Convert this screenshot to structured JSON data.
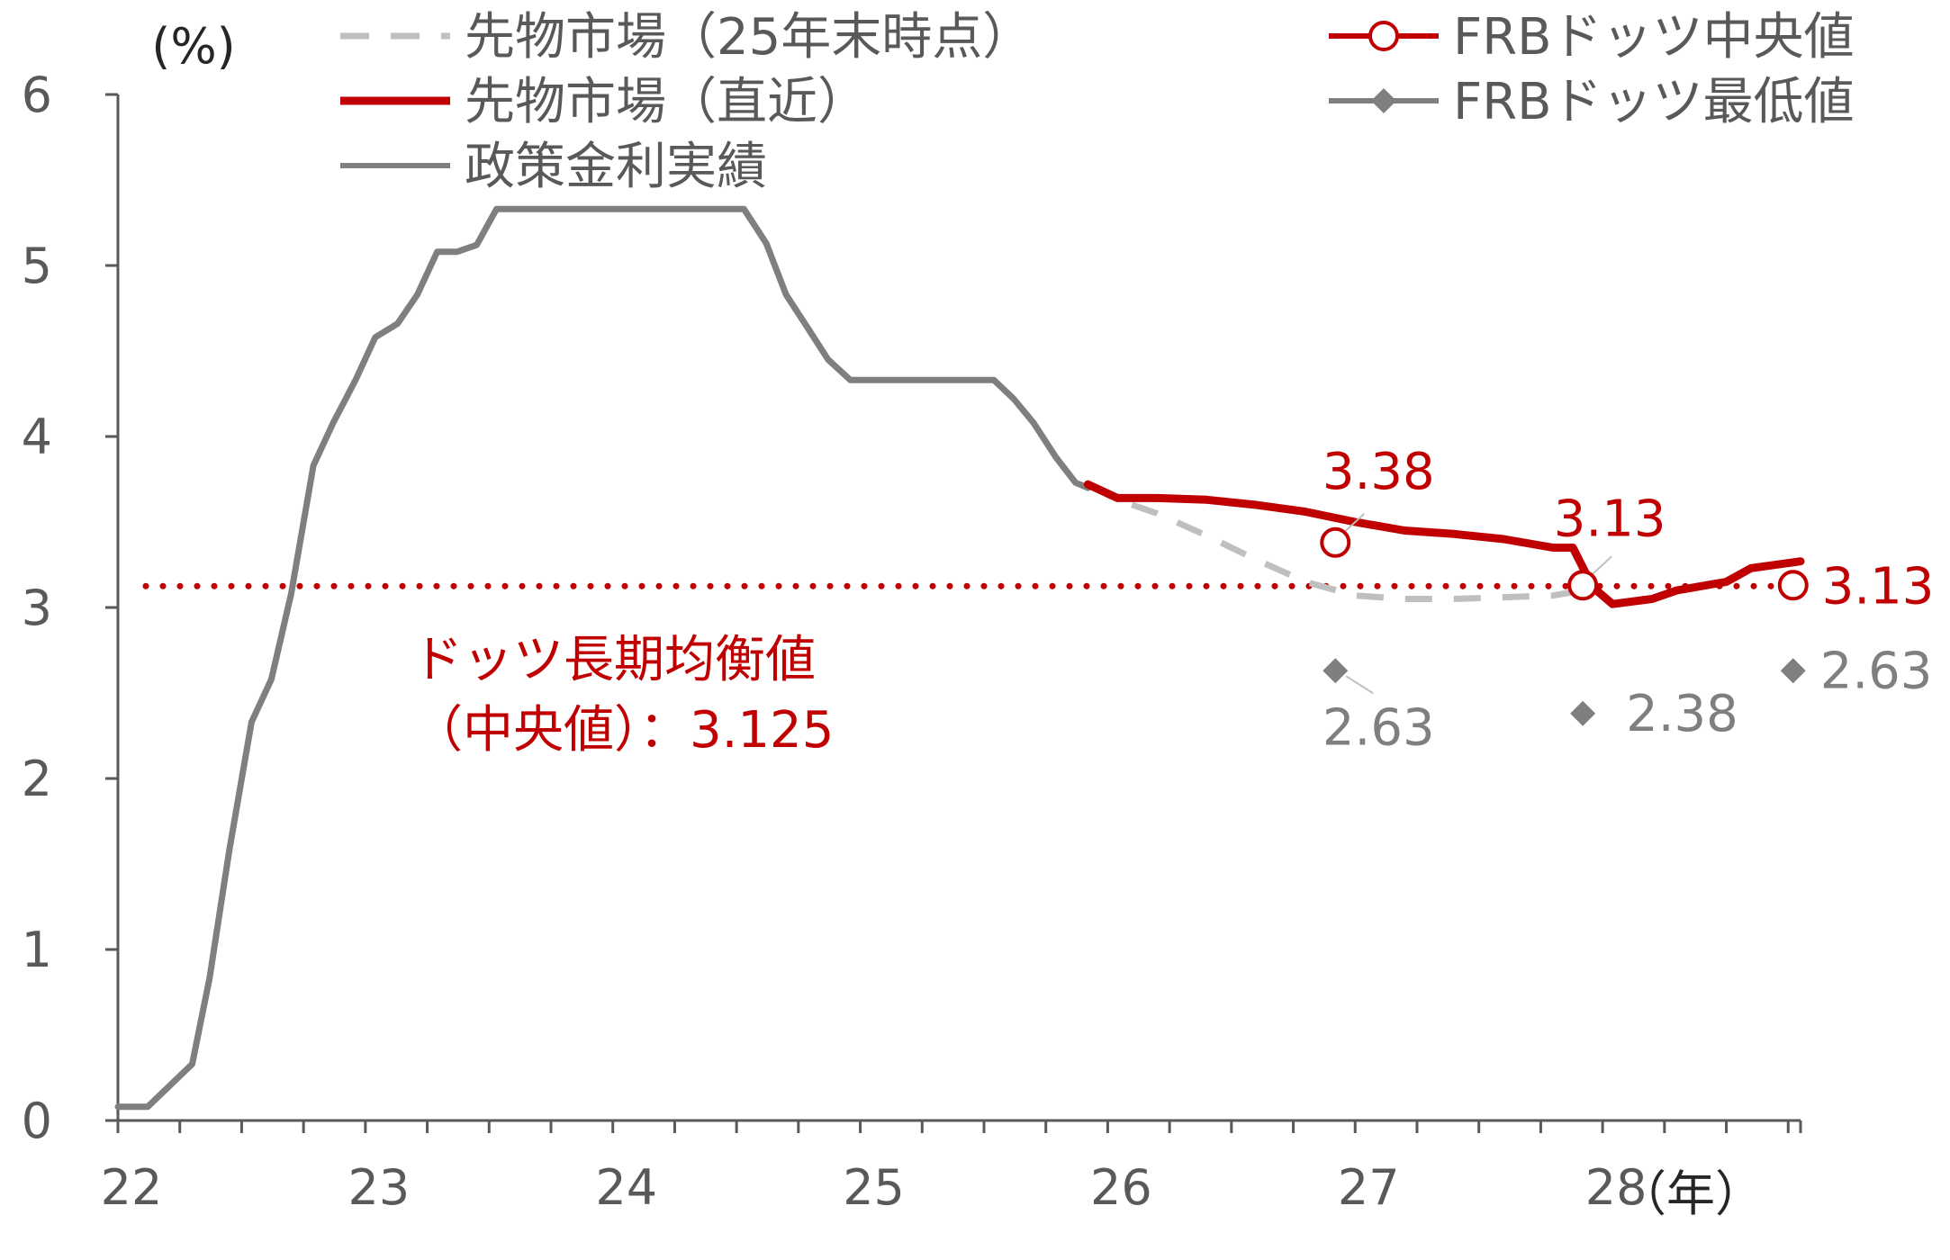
{
  "chart_data": {
    "type": "line",
    "y_unit": "(%)",
    "x_unit": "（年）",
    "ylim": [
      0,
      6
    ],
    "y_ticks": [
      "0",
      "1",
      "2",
      "3",
      "4",
      "5",
      "6"
    ],
    "xlim": [
      22,
      28.8
    ],
    "x_ticks": [
      "22",
      "23",
      "24",
      "25",
      "26",
      "27",
      "28"
    ],
    "grid": false,
    "legend_position": "top",
    "legend": [
      {
        "label": "先物市場（25年末時点）",
        "color": "#bfbfbf",
        "style": "dashed"
      },
      {
        "label": "先物市場（直近）",
        "color": "#c00000",
        "style": "solid-thick"
      },
      {
        "label": "政策金利実績",
        "color": "#7f7f7f",
        "style": "solid"
      },
      {
        "label": "FRBドッツ中央値",
        "color": "#c00000",
        "style": "circle-marker"
      },
      {
        "label": "FRBドッツ最低値",
        "color": "#7f7f7f",
        "style": "diamond-marker"
      }
    ],
    "series": [
      {
        "name": "政策金利実績",
        "color": "#7f7f7f",
        "x": [
          22.0,
          22.12,
          22.3,
          22.37,
          22.45,
          22.54,
          22.62,
          22.7,
          22.79,
          22.87,
          22.96,
          23.04,
          23.13,
          23.21,
          23.29,
          23.37,
          23.45,
          23.53,
          23.62,
          23.7,
          23.79,
          23.87,
          23.96,
          24.04,
          24.13,
          24.21,
          24.29,
          24.37,
          24.45,
          24.53,
          24.62,
          24.7,
          24.79,
          24.87,
          24.96,
          25.04,
          25.13,
          25.21,
          25.29,
          25.37,
          25.45,
          25.54,
          25.62,
          25.7,
          25.79,
          25.87,
          25.92
        ],
        "values": [
          0.08,
          0.08,
          0.33,
          0.83,
          1.58,
          2.33,
          2.58,
          3.08,
          3.83,
          4.08,
          4.33,
          4.58,
          4.66,
          4.83,
          5.08,
          5.08,
          5.12,
          5.33,
          5.33,
          5.33,
          5.33,
          5.33,
          5.33,
          5.33,
          5.33,
          5.33,
          5.33,
          5.33,
          5.33,
          5.33,
          5.13,
          4.83,
          4.63,
          4.45,
          4.33,
          4.33,
          4.33,
          4.33,
          4.33,
          4.33,
          4.33,
          4.33,
          4.22,
          4.08,
          3.88,
          3.73,
          3.7
        ]
      },
      {
        "name": "先物市場（25年末時点）",
        "color": "#bfbfbf",
        "x": [
          25.92,
          26.04,
          26.2,
          26.4,
          26.6,
          26.8,
          27.0,
          27.2,
          27.4,
          27.6,
          27.8,
          27.92
        ],
        "values": [
          3.72,
          3.63,
          3.55,
          3.42,
          3.28,
          3.15,
          3.07,
          3.05,
          3.05,
          3.06,
          3.07,
          3.1
        ]
      },
      {
        "name": "先物市場（直近）",
        "color": "#c00000",
        "x": [
          25.92,
          26.04,
          26.2,
          26.4,
          26.6,
          26.8,
          27.0,
          27.2,
          27.4,
          27.6,
          27.8,
          27.88,
          27.96,
          28.04,
          28.2,
          28.3,
          28.5,
          28.6,
          28.8
        ],
        "values": [
          3.72,
          3.64,
          3.64,
          3.63,
          3.6,
          3.56,
          3.5,
          3.45,
          3.43,
          3.4,
          3.35,
          3.35,
          3.12,
          3.02,
          3.05,
          3.1,
          3.15,
          3.23,
          3.27
        ]
      }
    ],
    "dots_median": {
      "name": "FRBドッツ中央値",
      "x": [
        26.92,
        27.92,
        28.77
      ],
      "values": [
        3.38,
        3.13,
        3.13
      ],
      "labels": [
        "3.38",
        "3.13",
        "3.13"
      ]
    },
    "dots_low": {
      "name": "FRBドッツ最低値",
      "x": [
        26.92,
        27.92,
        28.77
      ],
      "values": [
        2.63,
        2.38,
        2.63
      ],
      "labels": [
        "2.63",
        "2.38",
        "2.63"
      ]
    },
    "long_run": {
      "value": 3.125,
      "label_line1": "ドッツ長期均衡値",
      "label_line2": "（中央値）：3.125"
    }
  }
}
